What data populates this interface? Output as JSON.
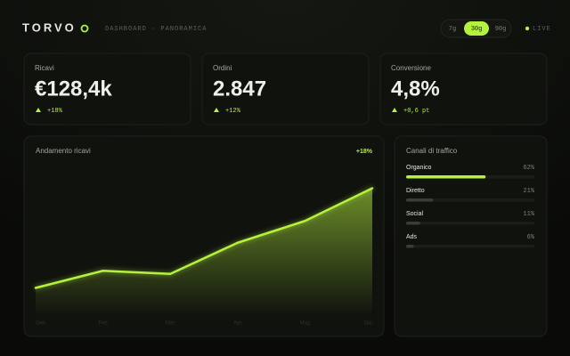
{
  "header": {
    "brand": "TORVO",
    "breadcrumb": "DASHBOARD · PANORAMICA",
    "ranges": [
      "7g",
      "30g",
      "90g"
    ],
    "active_range": 1,
    "status": "LIVE"
  },
  "kpis": [
    {
      "label": "Ricavi",
      "value": "€128,4k",
      "delta": "+18%"
    },
    {
      "label": "Ordini",
      "value": "2.847",
      "delta": "+12%"
    },
    {
      "label": "Conversione",
      "value": "4,8%",
      "delta": "+0,6 pt"
    }
  ],
  "chart_data": {
    "type": "area",
    "title": "Andamento ricavi",
    "badge": "+18%",
    "categories": [
      "Gen",
      "Feb",
      "Mar",
      "Apr",
      "Mag",
      "Giu"
    ],
    "values": [
      18,
      29,
      27,
      47,
      61,
      82
    ],
    "ylim": [
      0,
      100
    ],
    "color": "#b5f23d"
  },
  "traffic": {
    "title": "Canali di traffico",
    "categories": [
      "Organico",
      "Diretto",
      "Social",
      "Ads"
    ],
    "values": [
      62,
      21,
      11,
      6
    ],
    "value_labels": [
      "62%",
      "21%",
      "11%",
      "6%"
    ],
    "xlim": [
      0,
      100
    ],
    "colors": [
      "#b5f23d",
      "#3b3e37",
      "#3b3e37",
      "#3b3e37"
    ]
  }
}
